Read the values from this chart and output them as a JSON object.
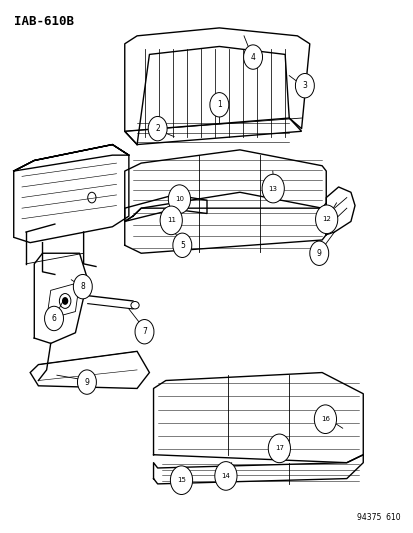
{
  "title": "IAB-610B",
  "figure_number": "94375  610",
  "bg_color": "#ffffff",
  "line_color": "#000000",
  "label_color": "#000000"
}
